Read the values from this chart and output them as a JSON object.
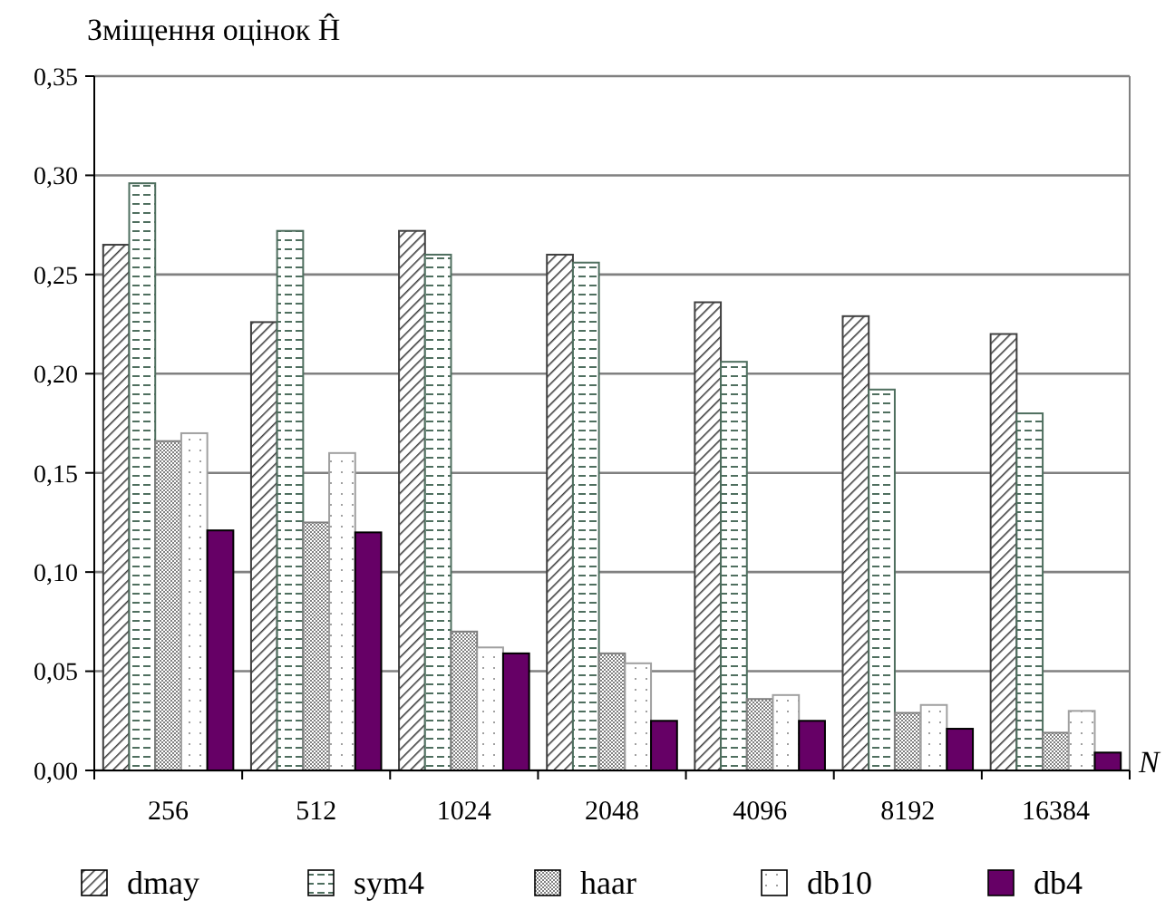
{
  "chart_data": {
    "type": "bar",
    "title": "Зміщення оцінок Ĥ",
    "xlabel": "N",
    "categories": [
      "256",
      "512",
      "1024",
      "2048",
      "4096",
      "8192",
      "16384"
    ],
    "series": [
      {
        "name": "dmay",
        "color": "#404040",
        "values": [
          0.265,
          0.226,
          0.272,
          0.26,
          0.236,
          0.229,
          0.22
        ]
      },
      {
        "name": "sym4",
        "color": "#4f6f5f",
        "values": [
          0.296,
          0.272,
          0.26,
          0.256,
          0.206,
          0.192,
          0.18
        ]
      },
      {
        "name": "haar",
        "color": "#808080",
        "values": [
          0.166,
          0.125,
          0.07,
          0.059,
          0.036,
          0.029,
          0.019
        ]
      },
      {
        "name": "db10",
        "color": "#a0a0a0",
        "values": [
          0.17,
          0.16,
          0.062,
          0.054,
          0.038,
          0.033,
          0.03
        ]
      },
      {
        "name": "db4",
        "color": "#660066",
        "values": [
          0.121,
          0.12,
          0.059,
          0.025,
          0.025,
          0.021,
          0.009
        ]
      }
    ],
    "ylim": [
      0,
      0.35
    ],
    "yticks": [
      {
        "value": 0,
        "label": "0,00"
      },
      {
        "value": 0.05,
        "label": "0,05"
      },
      {
        "value": 0.1,
        "label": "0,10"
      },
      {
        "value": 0.15,
        "label": "0,15"
      },
      {
        "value": 0.2,
        "label": "0,20"
      },
      {
        "value": 0.25,
        "label": "0,25"
      },
      {
        "value": 0.3,
        "label": "0,30"
      },
      {
        "value": 0.35,
        "label": "0,35"
      }
    ],
    "grid": "y",
    "legend": "bottom"
  }
}
